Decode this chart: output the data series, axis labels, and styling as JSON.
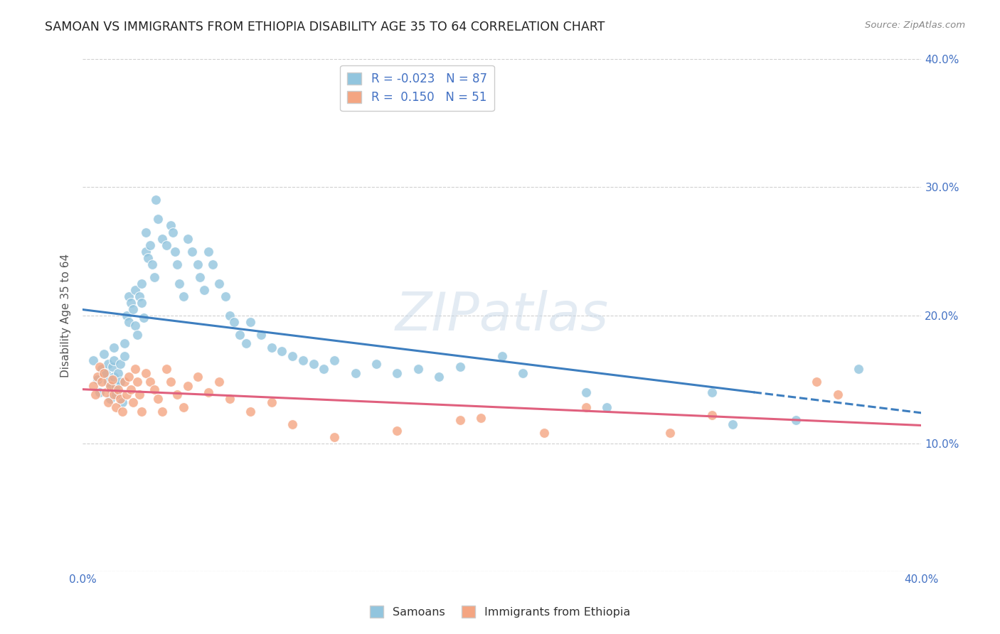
{
  "title": "SAMOAN VS IMMIGRANTS FROM ETHIOPIA DISABILITY AGE 35 TO 64 CORRELATION CHART",
  "source": "Source: ZipAtlas.com",
  "ylabel": "Disability Age 35 to 64",
  "xlim": [
    0.0,
    0.4
  ],
  "ylim": [
    0.0,
    0.4
  ],
  "background_color": "#ffffff",
  "blue_color": "#92c5de",
  "pink_color": "#f4a582",
  "blue_line_color": "#3d7ebf",
  "pink_line_color": "#e0607e",
  "blue_R": -0.023,
  "blue_N": 87,
  "pink_R": 0.15,
  "pink_N": 51,
  "legend_label_blue": "Samoans",
  "legend_label_pink": "Immigrants from Ethiopia",
  "blue_scatter_x": [
    0.005,
    0.007,
    0.008,
    0.009,
    0.01,
    0.01,
    0.011,
    0.012,
    0.012,
    0.013,
    0.013,
    0.014,
    0.015,
    0.015,
    0.015,
    0.016,
    0.016,
    0.017,
    0.018,
    0.018,
    0.019,
    0.02,
    0.02,
    0.021,
    0.022,
    0.022,
    0.023,
    0.024,
    0.025,
    0.025,
    0.026,
    0.027,
    0.028,
    0.028,
    0.029,
    0.03,
    0.03,
    0.031,
    0.032,
    0.033,
    0.034,
    0.035,
    0.036,
    0.038,
    0.04,
    0.042,
    0.043,
    0.044,
    0.045,
    0.046,
    0.048,
    0.05,
    0.052,
    0.055,
    0.056,
    0.058,
    0.06,
    0.062,
    0.065,
    0.068,
    0.07,
    0.072,
    0.075,
    0.078,
    0.08,
    0.085,
    0.09,
    0.095,
    0.1,
    0.105,
    0.11,
    0.115,
    0.12,
    0.13,
    0.14,
    0.15,
    0.16,
    0.17,
    0.18,
    0.2,
    0.21,
    0.24,
    0.25,
    0.3,
    0.31,
    0.34,
    0.37
  ],
  "blue_scatter_y": [
    0.165,
    0.15,
    0.14,
    0.158,
    0.17,
    0.155,
    0.155,
    0.162,
    0.148,
    0.143,
    0.135,
    0.16,
    0.175,
    0.165,
    0.152,
    0.145,
    0.138,
    0.155,
    0.162,
    0.148,
    0.132,
    0.178,
    0.168,
    0.2,
    0.215,
    0.195,
    0.21,
    0.205,
    0.22,
    0.192,
    0.185,
    0.215,
    0.225,
    0.21,
    0.198,
    0.25,
    0.265,
    0.245,
    0.255,
    0.24,
    0.23,
    0.29,
    0.275,
    0.26,
    0.255,
    0.27,
    0.265,
    0.25,
    0.24,
    0.225,
    0.215,
    0.26,
    0.25,
    0.24,
    0.23,
    0.22,
    0.25,
    0.24,
    0.225,
    0.215,
    0.2,
    0.195,
    0.185,
    0.178,
    0.195,
    0.185,
    0.175,
    0.172,
    0.168,
    0.165,
    0.162,
    0.158,
    0.165,
    0.155,
    0.162,
    0.155,
    0.158,
    0.152,
    0.16,
    0.168,
    0.155,
    0.14,
    0.128,
    0.14,
    0.115,
    0.118,
    0.158
  ],
  "pink_scatter_x": [
    0.005,
    0.006,
    0.007,
    0.008,
    0.009,
    0.01,
    0.011,
    0.012,
    0.013,
    0.014,
    0.015,
    0.016,
    0.017,
    0.018,
    0.019,
    0.02,
    0.021,
    0.022,
    0.023,
    0.024,
    0.025,
    0.026,
    0.027,
    0.028,
    0.03,
    0.032,
    0.034,
    0.036,
    0.038,
    0.04,
    0.042,
    0.045,
    0.048,
    0.05,
    0.055,
    0.06,
    0.065,
    0.07,
    0.08,
    0.09,
    0.1,
    0.12,
    0.15,
    0.18,
    0.19,
    0.22,
    0.24,
    0.28,
    0.3,
    0.35,
    0.36
  ],
  "pink_scatter_y": [
    0.145,
    0.138,
    0.152,
    0.16,
    0.148,
    0.155,
    0.14,
    0.132,
    0.145,
    0.15,
    0.138,
    0.128,
    0.142,
    0.135,
    0.125,
    0.148,
    0.138,
    0.152,
    0.142,
    0.132,
    0.158,
    0.148,
    0.138,
    0.125,
    0.155,
    0.148,
    0.142,
    0.135,
    0.125,
    0.158,
    0.148,
    0.138,
    0.128,
    0.145,
    0.152,
    0.14,
    0.148,
    0.135,
    0.125,
    0.132,
    0.115,
    0.105,
    0.11,
    0.118,
    0.12,
    0.108,
    0.128,
    0.108,
    0.122,
    0.148,
    0.138
  ]
}
